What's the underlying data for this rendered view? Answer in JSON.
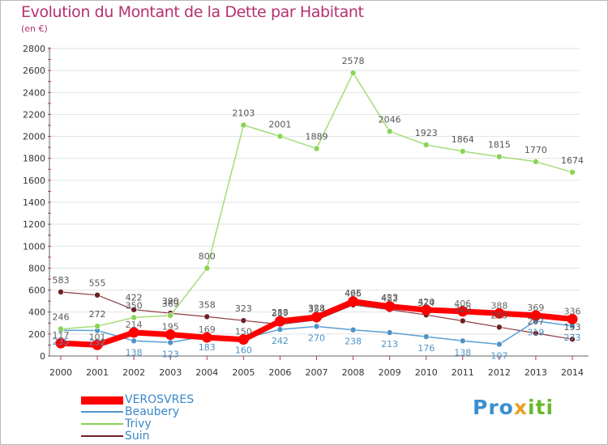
{
  "title": "Evolution du Montant de la Dette par Habitant",
  "subtitle": "(en €)",
  "logo": {
    "part1": "Pro",
    "part2": "x",
    "part3": "iti"
  },
  "colors": {
    "verosvres": "#ff0000",
    "beaubery": "#4d94c8",
    "trivy": "#88d452",
    "suin": "#6e1f24",
    "axis": "#555555",
    "grid": "#dddddd",
    "accent": "#b5306e"
  },
  "chart_data": {
    "type": "line",
    "title": "Evolution du Montant de la Dette par Habitant",
    "ylabel": "(en €)",
    "xlabel": "",
    "x": [
      "2000",
      "2001",
      "2002",
      "2003",
      "2004",
      "2005",
      "2006",
      "2007",
      "2008",
      "2009",
      "2010",
      "2011",
      "2012",
      "2013",
      "2014"
    ],
    "ylim": [
      0,
      2800
    ],
    "yticks": [
      0,
      200,
      400,
      600,
      800,
      1000,
      1200,
      1400,
      1600,
      1800,
      2000,
      2200,
      2400,
      2600,
      2800
    ],
    "grid": true,
    "legend_position": "bottom-left",
    "series": [
      {
        "name": "VEROSVRES",
        "values": [
          117,
          101,
          214,
          195,
          169,
          150,
          317,
          354,
          496,
          452,
          420,
          406,
          388,
          369,
          336
        ]
      },
      {
        "name": "Beaubery",
        "values": [
          235,
          232,
          138,
          123,
          183,
          160,
          242,
          270,
          238,
          213,
          176,
          138,
          107,
          319,
          273
        ]
      },
      {
        "name": "Trivy",
        "values": [
          246,
          272,
          350,
          369,
          800,
          2103,
          2001,
          1889,
          2578,
          2046,
          1923,
          1864,
          1815,
          1770,
          1674
        ]
      },
      {
        "name": "Suin",
        "values": [
          583,
          555,
          422,
          390,
          358,
          323,
          288,
          328,
          465,
          423,
          374,
          320,
          263,
          207,
          153
        ]
      }
    ]
  }
}
